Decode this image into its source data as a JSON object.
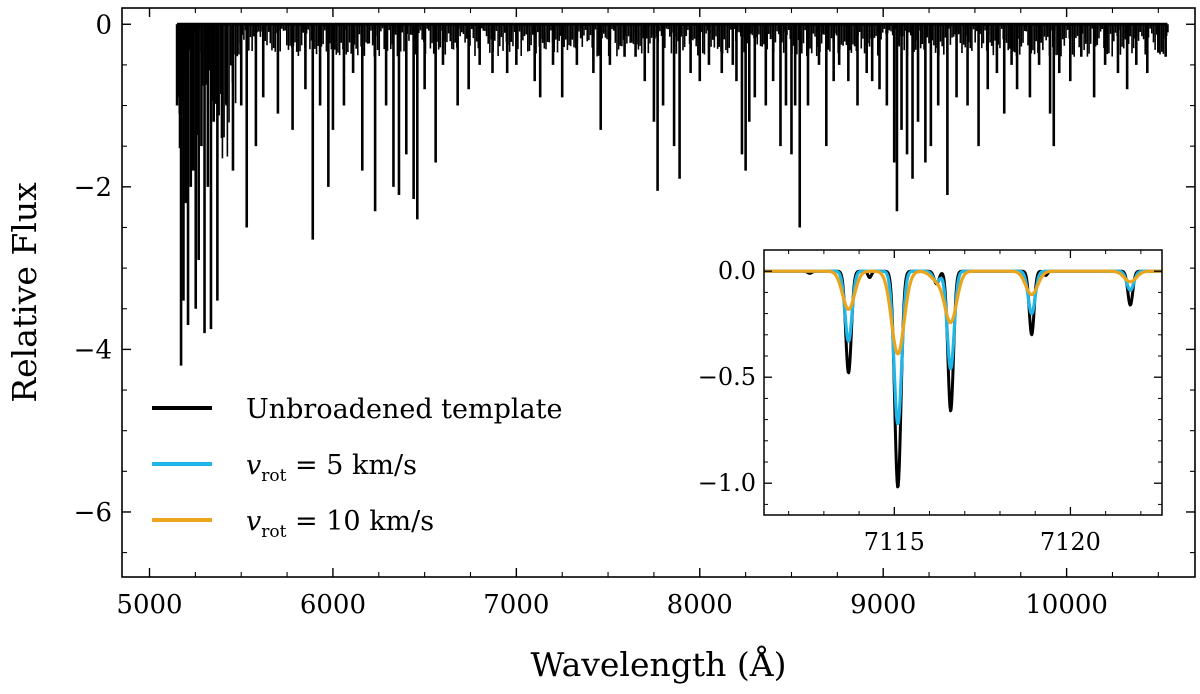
{
  "chart_data": [
    {
      "type": "line",
      "title": "",
      "xlabel": "Wavelength (Å)",
      "ylabel": "Relative Flux",
      "xlim": [
        4850,
        10700
      ],
      "ylim": [
        -6.8,
        0.2
      ],
      "xticks": [
        5000,
        6000,
        7000,
        8000,
        9000,
        10000
      ],
      "xtick_labels": [
        "5000",
        "6000",
        "7000",
        "8000",
        "9000",
        "10000"
      ],
      "yticks": [
        0,
        -2,
        -4,
        -6
      ],
      "ytick_labels": [
        "0",
        "−2",
        "−4",
        "−6"
      ],
      "grid": false,
      "legend": {
        "position": "lower-left",
        "entries": [
          {
            "label": "Unbroadened template",
            "color": "#000000"
          },
          {
            "label_prefix": "v",
            "label_sub": "rot",
            "label_suffix": " = 5 km/s",
            "color": "#1fb6e8"
          },
          {
            "label_prefix": "v",
            "label_sub": "rot",
            "label_suffix": " = 10 km/s",
            "color": "#eba51c"
          }
        ]
      },
      "series": [
        {
          "color": "#000000",
          "x_range": [
            5150,
            10550
          ],
          "baseline": 0.0,
          "absorption_lines": [
            [
              5155,
              -0.9
            ],
            [
              5165,
              -1.1
            ],
            [
              5172,
              -4.2
            ],
            [
              5185,
              -3.4
            ],
            [
              5198,
              -2.2
            ],
            [
              5210,
              -3.7
            ],
            [
              5225,
              -2.0
            ],
            [
              5238,
              -1.8
            ],
            [
              5252,
              -3.5
            ],
            [
              5268,
              -2.9
            ],
            [
              5283,
              -1.5
            ],
            [
              5300,
              -3.8
            ],
            [
              5318,
              -2.0
            ],
            [
              5335,
              -3.75
            ],
            [
              5350,
              -1.2
            ],
            [
              5370,
              -3.4
            ],
            [
              5395,
              -1.4
            ],
            [
              5420,
              -1.0
            ],
            [
              5455,
              -1.8
            ],
            [
              5500,
              -1.0
            ],
            [
              5530,
              -2.5
            ],
            [
              5580,
              -1.5
            ],
            [
              5620,
              -0.9
            ],
            [
              5700,
              -1.1
            ],
            [
              5780,
              -1.3
            ],
            [
              5850,
              -0.8
            ],
            [
              5890,
              -2.65
            ],
            [
              5930,
              -1.0
            ],
            [
              5975,
              -2.0
            ],
            [
              6000,
              -1.3
            ],
            [
              6060,
              -1.0
            ],
            [
              6110,
              -0.6
            ],
            [
              6160,
              -1.8
            ],
            [
              6230,
              -2.3
            ],
            [
              6290,
              -1.0
            ],
            [
              6330,
              -2.0
            ],
            [
              6360,
              -2.1
            ],
            [
              6400,
              -1.6
            ],
            [
              6440,
              -2.15
            ],
            [
              6460,
              -2.4
            ],
            [
              6500,
              -0.8
            ],
            [
              6560,
              -1.7
            ],
            [
              6600,
              -0.5
            ],
            [
              6680,
              -1.0
            ],
            [
              6740,
              -0.8
            ],
            [
              6800,
              -0.5
            ],
            [
              6870,
              -0.6
            ],
            [
              6950,
              -0.6
            ],
            [
              7000,
              -0.5
            ],
            [
              7100,
              -0.7
            ],
            [
              7130,
              -0.9
            ],
            [
              7200,
              -0.5
            ],
            [
              7250,
              -0.9
            ],
            [
              7330,
              -0.5
            ],
            [
              7420,
              -0.6
            ],
            [
              7460,
              -1.3
            ],
            [
              7510,
              -0.5
            ],
            [
              7590,
              -0.4
            ],
            [
              7650,
              -0.4
            ],
            [
              7700,
              -0.7
            ],
            [
              7750,
              -1.2
            ],
            [
              7770,
              -2.05
            ],
            [
              7800,
              -1.0
            ],
            [
              7860,
              -1.5
            ],
            [
              7890,
              -1.9
            ],
            [
              7950,
              -0.6
            ],
            [
              8000,
              -0.7
            ],
            [
              8050,
              -0.5
            ],
            [
              8120,
              -0.6
            ],
            [
              8180,
              -0.5
            ],
            [
              8200,
              -0.7
            ],
            [
              8230,
              -1.6
            ],
            [
              8250,
              -1.8
            ],
            [
              8270,
              -1.2
            ],
            [
              8300,
              -0.9
            ],
            [
              8360,
              -1.0
            ],
            [
              8400,
              -0.7
            ],
            [
              8440,
              -1.5
            ],
            [
              8470,
              -1.0
            ],
            [
              8500,
              -1.6
            ],
            [
              8520,
              -1.0
            ],
            [
              8545,
              -2.5
            ],
            [
              8590,
              -1.0
            ],
            [
              8650,
              -0.5
            ],
            [
              8690,
              -1.5
            ],
            [
              8730,
              -0.7
            ],
            [
              8760,
              -0.5
            ],
            [
              8810,
              -0.7
            ],
            [
              8860,
              -1.0
            ],
            [
              8910,
              -0.6
            ],
            [
              8940,
              -0.7
            ],
            [
              8980,
              -0.8
            ],
            [
              9020,
              -1.0
            ],
            [
              9060,
              -1.7
            ],
            [
              9075,
              -2.3
            ],
            [
              9100,
              -1.3
            ],
            [
              9130,
              -1.6
            ],
            [
              9160,
              -1.9
            ],
            [
              9190,
              -1.2
            ],
            [
              9230,
              -1.7
            ],
            [
              9260,
              -1.5
            ],
            [
              9300,
              -1.0
            ],
            [
              9350,
              -2.1
            ],
            [
              9400,
              -0.9
            ],
            [
              9460,
              -1.0
            ],
            [
              9520,
              -1.5
            ],
            [
              9570,
              -0.8
            ],
            [
              9620,
              -0.6
            ],
            [
              9660,
              -1.1
            ],
            [
              9700,
              -0.5
            ],
            [
              9730,
              -0.8
            ],
            [
              9800,
              -0.9
            ],
            [
              9850,
              -0.5
            ],
            [
              9910,
              -1.1
            ],
            [
              9930,
              -1.5
            ],
            [
              9960,
              -0.6
            ],
            [
              10020,
              -0.7
            ],
            [
              10080,
              -0.4
            ],
            [
              10150,
              -0.9
            ],
            [
              10210,
              -0.5
            ],
            [
              10280,
              -0.6
            ],
            [
              10330,
              -0.8
            ],
            [
              10380,
              -0.5
            ],
            [
              10440,
              -0.6
            ],
            [
              10500,
              -0.35
            ],
            [
              10540,
              -0.4
            ]
          ]
        }
      ]
    },
    {
      "type": "line",
      "title": "",
      "xlabel": "",
      "ylabel": "",
      "xlim": [
        7111.3,
        7122.6
      ],
      "ylim": [
        -1.15,
        0.1
      ],
      "xticks": [
        7115,
        7120
      ],
      "xtick_labels": [
        "7115",
        "7120"
      ],
      "yticks": [
        0.0,
        -0.5,
        -1.0
      ],
      "ytick_labels": [
        "0.0",
        "−0.5",
        "−1.0"
      ],
      "grid": false,
      "series": [
        {
          "name": "Unbroadened template",
          "color": "#000000",
          "lines": [
            [
              7112.6,
              -0.01
            ],
            [
              7113.7,
              -0.48
            ],
            [
              7114.3,
              -0.03
            ],
            [
              7115.1,
              -1.02
            ],
            [
              7116.2,
              -0.06
            ],
            [
              7116.6,
              -0.66
            ],
            [
              7118.9,
              -0.3
            ],
            [
              7119.3,
              -0.02
            ],
            [
              7121.7,
              -0.16
            ]
          ],
          "widths": [
            0.06,
            0.08,
            0.05,
            0.09,
            0.07,
            0.08,
            0.07,
            0.05,
            0.07
          ]
        },
        {
          "name": "vrot = 5 km/s",
          "color": "#1fb6e8",
          "lines": [
            [
              7113.7,
              -0.33
            ],
            [
              7115.1,
              -0.72
            ],
            [
              7116.2,
              -0.05
            ],
            [
              7116.6,
              -0.46
            ],
            [
              7118.9,
              -0.2
            ],
            [
              7121.7,
              -0.09
            ]
          ],
          "widths": [
            0.1,
            0.11,
            0.1,
            0.1,
            0.1,
            0.1
          ]
        },
        {
          "name": "vrot = 10 km/s",
          "color": "#eba51c",
          "lines": [
            [
              7113.7,
              -0.18
            ],
            [
              7115.1,
              -0.39
            ],
            [
              7116.2,
              -0.04
            ],
            [
              7116.6,
              -0.24
            ],
            [
              7118.9,
              -0.11
            ],
            [
              7121.7,
              -0.05
            ]
          ],
          "widths": [
            0.17,
            0.18,
            0.17,
            0.17,
            0.17,
            0.17
          ]
        }
      ]
    }
  ]
}
